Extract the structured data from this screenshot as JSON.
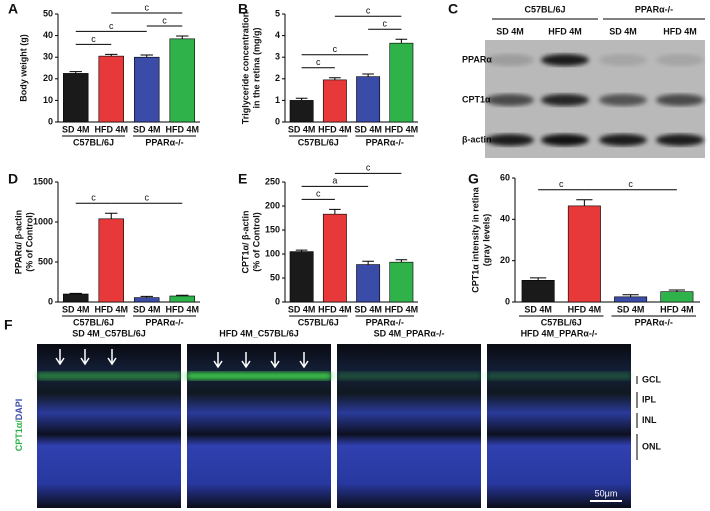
{
  "chart_data": [
    {
      "type": "bar",
      "panel": "A",
      "ylabel": [
        "Body weight (g)"
      ],
      "categories": [
        "SD 4M",
        "HFD 4M",
        "SD 4M",
        "HFD 4M"
      ],
      "groups": [
        "C57BL/6J",
        "PPARα-/-"
      ],
      "values": [
        22.5,
        30.5,
        30,
        38.5
      ],
      "errors": [
        0.8,
        0.8,
        1,
        1.3
      ],
      "colors": [
        "#1a1a1a",
        "#e8393a",
        "#3a4ba8",
        "#2fb24a"
      ],
      "ylim": [
        0,
        50
      ],
      "yticks": [
        0,
        10,
        20,
        30,
        40,
        50
      ],
      "annotations": [
        {
          "label": "c",
          "from": 0,
          "to": 1
        },
        {
          "label": "c",
          "from": 2,
          "to": 3
        },
        {
          "label": "c",
          "from": 0,
          "to": 2
        },
        {
          "label": "c",
          "from": 1,
          "to": 3
        }
      ]
    },
    {
      "type": "bar",
      "panel": "B",
      "ylabel": [
        "Triglyceride concentration",
        "in the retina (mg/g)"
      ],
      "categories": [
        "SD 4M",
        "HFD 4M",
        "SD 4M",
        "HFD 4M"
      ],
      "groups": [
        "C57BL/6J",
        "PPARα-/-"
      ],
      "values": [
        1.0,
        1.95,
        2.1,
        3.65
      ],
      "errors": [
        0.1,
        0.1,
        0.12,
        0.18
      ],
      "colors": [
        "#1a1a1a",
        "#e8393a",
        "#3a4ba8",
        "#2fb24a"
      ],
      "ylim": [
        0,
        5
      ],
      "yticks": [
        0,
        1,
        2,
        3,
        4,
        5
      ],
      "annotations": [
        {
          "label": "c",
          "from": 0,
          "to": 1
        },
        {
          "label": "c",
          "from": 0,
          "to": 2
        },
        {
          "label": "c",
          "from": 2,
          "to": 3
        },
        {
          "label": "c",
          "from": 1,
          "to": 3
        }
      ]
    },
    {
      "type": "bar",
      "panel": "D",
      "ylabel": [
        "PPARα/ β-actin",
        "(% of Control)"
      ],
      "categories": [
        "SD 4M",
        "HFD 4M",
        "SD 4M",
        "HFD 4M"
      ],
      "groups": [
        "C57BL/6J",
        "PPARα-/-"
      ],
      "values": [
        100,
        1040,
        55,
        75
      ],
      "errors": [
        8,
        70,
        15,
        10
      ],
      "colors": [
        "#1a1a1a",
        "#e8393a",
        "#3a4ba8",
        "#2fb24a"
      ],
      "ylim": [
        0,
        1500
      ],
      "yticks": [
        0,
        500,
        1000,
        1500
      ],
      "annotations": [
        {
          "label": "c",
          "from": 0,
          "to": 1
        },
        {
          "label": "c",
          "from": 1,
          "to": 3
        }
      ]
    },
    {
      "type": "bar",
      "panel": "E",
      "ylabel": [
        "CPT1α/ β-actin",
        "(% of Control)"
      ],
      "categories": [
        "SD 4M",
        "HFD 4M",
        "SD 4M",
        "HFD 4M"
      ],
      "groups": [
        "C57BL/6J",
        "PPARα-/-"
      ],
      "values": [
        105,
        183,
        78,
        83
      ],
      "errors": [
        3,
        10,
        7,
        5
      ],
      "colors": [
        "#1a1a1a",
        "#e8393a",
        "#3a4ba8",
        "#2fb24a"
      ],
      "ylim": [
        0,
        250
      ],
      "yticks": [
        0,
        50,
        100,
        150,
        200,
        250
      ],
      "annotations": [
        {
          "label": "c",
          "from": 0,
          "to": 1
        },
        {
          "label": "a",
          "from": 0,
          "to": 2
        },
        {
          "label": "c",
          "from": 1,
          "to": 3
        }
      ]
    },
    {
      "type": "bar",
      "panel": "G",
      "ylabel": [
        "CPT1α intensity in retina",
        "(gray levels)"
      ],
      "categories": [
        "SD 4M",
        "HFD 4M",
        "SD 4M",
        "HFD 4M"
      ],
      "groups": [
        "C57BL/6J",
        "PPARα-/-"
      ],
      "values": [
        10.5,
        46.5,
        2.5,
        5
      ],
      "errors": [
        1.2,
        3,
        1,
        0.8
      ],
      "colors": [
        "#1a1a1a",
        "#e8393a",
        "#3a4ba8",
        "#2fb24a"
      ],
      "ylim": [
        0,
        60
      ],
      "yticks": [
        0,
        20,
        40,
        60
      ],
      "annotations": [
        {
          "label": "c",
          "from": 0,
          "to": 1
        },
        {
          "label": "c",
          "from": 1,
          "to": 3
        }
      ]
    }
  ],
  "blot": {
    "panel": "C",
    "groups": [
      "C57BL/6J",
      "PPARα-/-"
    ],
    "lanes": [
      "SD 4M",
      "HFD 4M",
      "SD 4M",
      "HFD 4M"
    ],
    "rows": [
      "PPARα",
      "CPT1α",
      "β-actin"
    ]
  },
  "micrographs": {
    "panel": "F",
    "stain": [
      "CPT1α/",
      "DAPI"
    ],
    "titles": [
      "SD 4M_C57BL/6J",
      "HFD 4M_C57BL/6J",
      "SD 4M_PPARα-/-",
      "HFD 4M_PPARα-/-"
    ],
    "layers": [
      "GCL",
      "IPL",
      "INL",
      "ONL"
    ],
    "scale_bar": "50μm"
  }
}
